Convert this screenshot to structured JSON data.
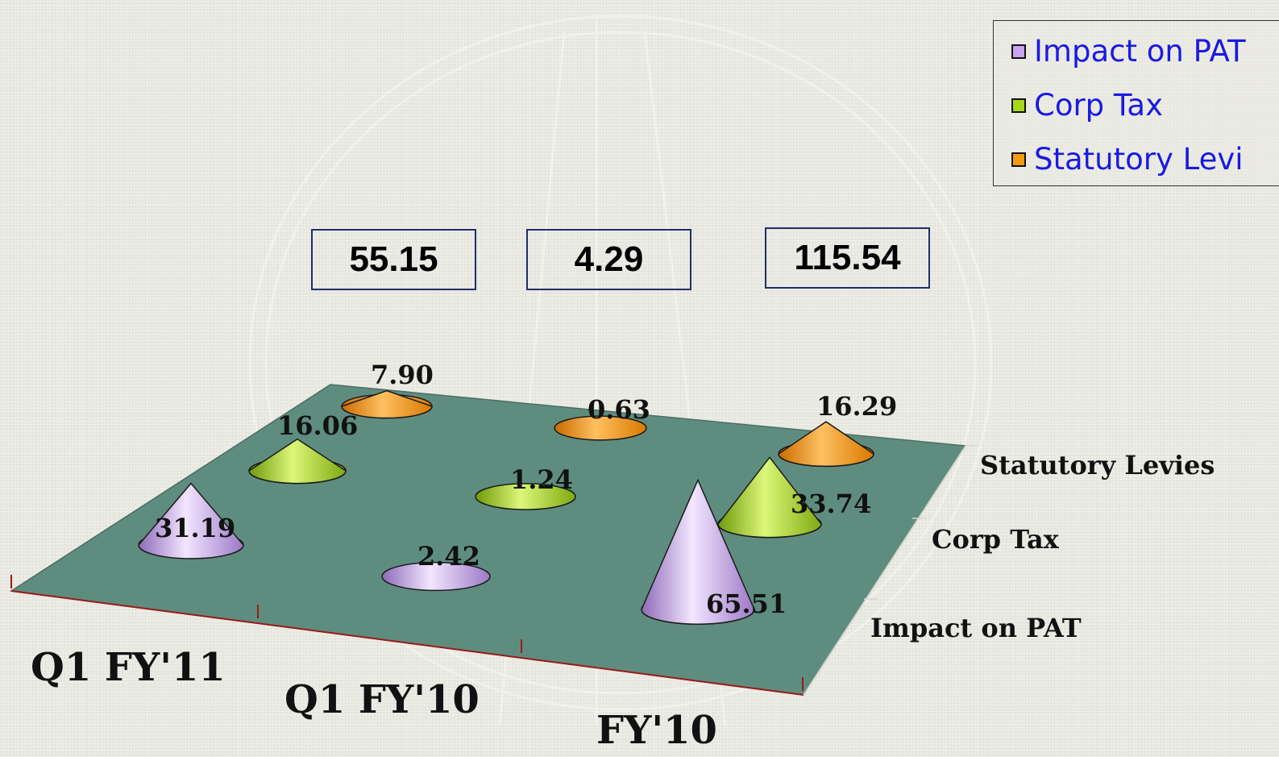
{
  "chart_data": {
    "type": "3d-cone",
    "categories": [
      "Q1 FY'11",
      "Q1 FY'10",
      "FY'10"
    ],
    "series": [
      {
        "name": "Impact on PAT",
        "values": [
          31.19,
          2.42,
          65.51
        ],
        "color": "#c9a3f0"
      },
      {
        "name": "Corp Tax",
        "values": [
          16.06,
          1.24,
          33.74
        ],
        "color": "#a8d81c"
      },
      {
        "name": "Statutory Levies",
        "values": [
          7.9,
          0.63,
          16.29
        ],
        "color": "#f39a13"
      }
    ],
    "depth_labels": [
      "Impact on PAT",
      "Corp Tax",
      "Statutory Levies"
    ],
    "totals": [
      "55.15",
      "4.29",
      "115.54"
    ],
    "value_labels": [
      [
        "31.19",
        "2.42",
        "65.51"
      ],
      [
        "16.06",
        "1.24",
        "33.74"
      ],
      [
        "7.90",
        "0.63",
        "16.29"
      ]
    ],
    "floor_color": "#5e8d80",
    "legend_position": "top-right"
  },
  "legend": {
    "items": [
      {
        "label": "Impact on PAT",
        "color": "#c9a3f0"
      },
      {
        "label": "Corp Tax",
        "color": "#a8d81c"
      },
      {
        "label": "Statutory Levi",
        "color": "#f39a13"
      }
    ]
  }
}
